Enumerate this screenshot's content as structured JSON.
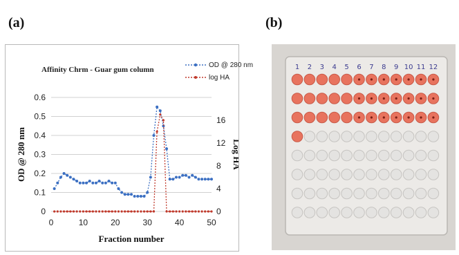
{
  "panels": {
    "a_label": "(a)",
    "b_label": "(b)"
  },
  "chart_data": {
    "type": "line",
    "title": "Affinity Chrm - Guar gum column",
    "xlabel": "Fraction number",
    "ylabel": "OD @ 280 nm",
    "y2label": "Log HA",
    "xlim": [
      0,
      50
    ],
    "ylim": [
      0,
      0.6
    ],
    "y2lim": [
      0,
      20
    ],
    "xticks": [
      "0",
      "10",
      "20",
      "30",
      "40",
      "50"
    ],
    "yticks": [
      "0",
      "0.1",
      "0.2",
      "0.3",
      "0.4",
      "0.5",
      "0.6"
    ],
    "y2ticks": [
      "0",
      "4",
      "8",
      "12",
      "16"
    ],
    "grid": "horizontal",
    "legend": "top-right",
    "series": [
      {
        "name": "OD @ 280 nm",
        "axis": "left",
        "color": "#3b6fc2",
        "x": [
          1,
          2,
          3,
          4,
          5,
          6,
          7,
          8,
          9,
          10,
          11,
          12,
          13,
          14,
          15,
          16,
          17,
          18,
          19,
          20,
          21,
          22,
          23,
          24,
          25,
          26,
          27,
          28,
          29,
          30,
          31,
          32,
          33,
          34,
          35,
          36,
          37,
          38,
          39,
          40,
          41,
          42,
          43,
          44,
          45,
          46,
          47,
          48,
          49,
          50
        ],
        "y": [
          0.12,
          0.15,
          0.18,
          0.2,
          0.19,
          0.18,
          0.17,
          0.16,
          0.15,
          0.15,
          0.15,
          0.16,
          0.15,
          0.15,
          0.16,
          0.15,
          0.15,
          0.16,
          0.15,
          0.15,
          0.12,
          0.1,
          0.09,
          0.09,
          0.09,
          0.08,
          0.08,
          0.08,
          0.08,
          0.1,
          0.18,
          0.4,
          0.55,
          0.53,
          0.45,
          0.33,
          0.17,
          0.17,
          0.18,
          0.18,
          0.19,
          0.19,
          0.18,
          0.19,
          0.18,
          0.17,
          0.17,
          0.17,
          0.17,
          0.17
        ]
      },
      {
        "name": "log HA",
        "axis": "right",
        "color": "#c0392b",
        "x": [
          1,
          2,
          3,
          4,
          5,
          6,
          7,
          8,
          9,
          10,
          11,
          12,
          13,
          14,
          15,
          16,
          17,
          18,
          19,
          20,
          21,
          22,
          23,
          24,
          25,
          26,
          27,
          28,
          29,
          30,
          31,
          32,
          33,
          34,
          35,
          36,
          37,
          38,
          39,
          40,
          41,
          42,
          43,
          44,
          45,
          46,
          47,
          48,
          49,
          50
        ],
        "y": [
          0,
          0,
          0,
          0,
          0,
          0,
          0,
          0,
          0,
          0,
          0,
          0,
          0,
          0,
          0,
          0,
          0,
          0,
          0,
          0,
          0,
          0,
          0,
          0,
          0,
          0,
          0,
          0,
          0,
          0,
          0,
          0,
          14,
          17,
          16,
          0,
          0,
          0,
          0,
          0,
          0,
          0,
          0,
          0,
          0,
          0,
          0,
          0,
          0,
          0
        ]
      }
    ]
  },
  "plate": {
    "column_numbers": [
      "1",
      "2",
      "3",
      "4",
      "5",
      "6",
      "7",
      "8",
      "9",
      "10",
      "11",
      "12"
    ],
    "well_color": "#e8735e",
    "empty_well_color": "#e4e3e1",
    "filled_rows": [
      12,
      12,
      12,
      1,
      0,
      0,
      0,
      0
    ]
  }
}
